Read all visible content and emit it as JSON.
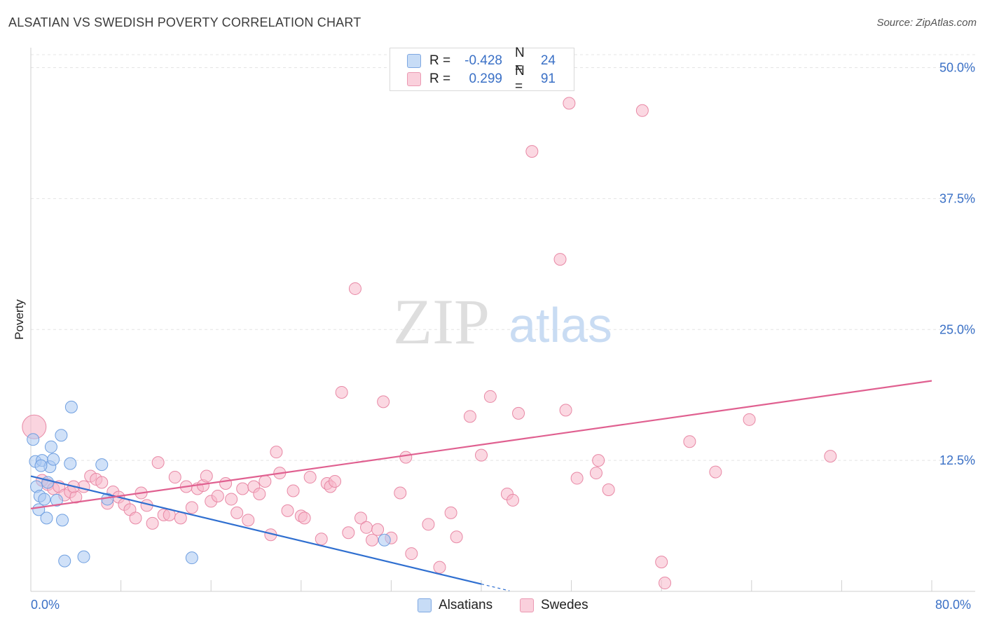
{
  "header": {
    "title": "ALSATIAN VS SWEDISH POVERTY CORRELATION CHART",
    "source": "Source: ZipAtlas.com"
  },
  "legend": {
    "rows": [
      {
        "r_label": "R =",
        "r_value": "-0.428",
        "n_label": "N =",
        "n_value": "24",
        "color": "#a9c9f2",
        "border": "#6f9fe0"
      },
      {
        "r_label": "R =",
        "r_value": "0.299",
        "n_label": "N =",
        "n_value": "91",
        "color": "#f7b8ca",
        "border": "#e888a5"
      }
    ]
  },
  "bottom_legend": {
    "alsatians": "Alsatians",
    "swedes": "Swedes"
  },
  "watermark": {
    "zip": "ZIP",
    "atlas": "atlas"
  },
  "chart_data": {
    "type": "scatter",
    "title": "ALSATIAN VS SWEDISH POVERTY CORRELATION CHART",
    "xlabel": "",
    "ylabel": "Poverty",
    "xlim": [
      0,
      80
    ],
    "ylim": [
      0,
      50
    ],
    "x_tick_labels": [
      "0.0%",
      "80.0%"
    ],
    "y_ticks": [
      12.5,
      25.0,
      37.5,
      50.0
    ],
    "y_tick_labels": [
      "12.5%",
      "25.0%",
      "37.5%",
      "50.0%"
    ],
    "grid": true,
    "legend_position": "top-center",
    "series": [
      {
        "name": "Alsatians",
        "color": "#6f9fe0",
        "fill": "#a9c9f2",
        "trend_color": "#2f6fd0",
        "trend": {
          "x0": 0,
          "y0": 11.0,
          "x1": 40,
          "y1": 0.7,
          "dash_to_x": 42.5
        },
        "points": [
          [
            0.2,
            14.5
          ],
          [
            0.4,
            12.4
          ],
          [
            0.5,
            10.0
          ],
          [
            0.7,
            7.8
          ],
          [
            0.8,
            9.1
          ],
          [
            1.0,
            12.5
          ],
          [
            1.2,
            8.8
          ],
          [
            1.4,
            7.0
          ],
          [
            1.5,
            10.4
          ],
          [
            1.7,
            11.9
          ],
          [
            1.8,
            13.8
          ],
          [
            2.0,
            12.6
          ],
          [
            2.3,
            8.7
          ],
          [
            2.7,
            14.9
          ],
          [
            2.8,
            6.8
          ],
          [
            3.0,
            2.9
          ],
          [
            3.5,
            12.2
          ],
          [
            3.6,
            17.6
          ],
          [
            4.7,
            3.3
          ],
          [
            6.3,
            12.1
          ],
          [
            6.8,
            8.8
          ],
          [
            14.3,
            3.2
          ],
          [
            31.4,
            4.9
          ],
          [
            0.9,
            12.0
          ]
        ]
      },
      {
        "name": "Swedes",
        "color": "#e888a5",
        "fill": "#f7b8ca",
        "trend_color": "#e06090",
        "trend": {
          "x0": 0,
          "y0": 7.9,
          "x1": 80,
          "y1": 20.1
        },
        "points": [
          [
            0.3,
            15.7
          ],
          [
            1.0,
            10.6
          ],
          [
            1.5,
            10.2
          ],
          [
            2.0,
            9.8
          ],
          [
            2.5,
            10.0
          ],
          [
            3.0,
            9.2
          ],
          [
            3.5,
            9.5
          ],
          [
            4.0,
            9.0
          ],
          [
            4.7,
            10.0
          ],
          [
            5.3,
            11.0
          ],
          [
            5.8,
            10.7
          ],
          [
            6.3,
            10.4
          ],
          [
            6.8,
            8.4
          ],
          [
            7.3,
            9.5
          ],
          [
            7.8,
            9.0
          ],
          [
            8.3,
            8.3
          ],
          [
            8.8,
            7.8
          ],
          [
            9.3,
            7.0
          ],
          [
            9.8,
            9.4
          ],
          [
            10.3,
            8.2
          ],
          [
            10.8,
            6.5
          ],
          [
            11.3,
            12.3
          ],
          [
            11.8,
            7.3
          ],
          [
            12.3,
            7.3
          ],
          [
            12.8,
            10.9
          ],
          [
            13.3,
            7.0
          ],
          [
            13.8,
            10.0
          ],
          [
            14.3,
            8.0
          ],
          [
            14.8,
            9.8
          ],
          [
            15.3,
            10.1
          ],
          [
            15.6,
            11.0
          ],
          [
            16.0,
            8.6
          ],
          [
            16.6,
            9.1
          ],
          [
            17.3,
            10.3
          ],
          [
            17.8,
            8.8
          ],
          [
            18.3,
            7.5
          ],
          [
            18.8,
            9.8
          ],
          [
            19.3,
            6.8
          ],
          [
            19.8,
            10.0
          ],
          [
            20.3,
            9.3
          ],
          [
            20.8,
            10.5
          ],
          [
            21.3,
            5.4
          ],
          [
            21.8,
            13.3
          ],
          [
            22.1,
            11.3
          ],
          [
            22.8,
            7.7
          ],
          [
            23.3,
            9.6
          ],
          [
            24.0,
            7.2
          ],
          [
            24.3,
            7.0
          ],
          [
            24.8,
            10.9
          ],
          [
            25.8,
            5.0
          ],
          [
            26.3,
            10.3
          ],
          [
            26.6,
            10.0
          ],
          [
            27.0,
            10.5
          ],
          [
            27.6,
            19.0
          ],
          [
            28.2,
            5.6
          ],
          [
            28.8,
            28.9
          ],
          [
            29.3,
            7.0
          ],
          [
            29.8,
            6.1
          ],
          [
            30.3,
            4.9
          ],
          [
            30.8,
            5.9
          ],
          [
            31.3,
            18.1
          ],
          [
            32.0,
            5.1
          ],
          [
            32.8,
            9.4
          ],
          [
            33.3,
            12.8
          ],
          [
            33.8,
            3.6
          ],
          [
            35.3,
            6.4
          ],
          [
            36.3,
            2.3
          ],
          [
            37.3,
            7.5
          ],
          [
            37.8,
            5.2
          ],
          [
            39.0,
            16.7
          ],
          [
            40.0,
            13.0
          ],
          [
            40.8,
            18.6
          ],
          [
            42.3,
            9.3
          ],
          [
            42.8,
            8.7
          ],
          [
            43.3,
            17.0
          ],
          [
            44.5,
            42.0
          ],
          [
            47.0,
            31.7
          ],
          [
            47.5,
            17.3
          ],
          [
            47.8,
            46.6
          ],
          [
            48.5,
            10.8
          ],
          [
            50.2,
            11.3
          ],
          [
            50.4,
            12.5
          ],
          [
            51.3,
            9.7
          ],
          [
            54.3,
            45.9
          ],
          [
            56.0,
            2.8
          ],
          [
            56.3,
            0.8
          ],
          [
            58.5,
            14.3
          ],
          [
            60.8,
            11.4
          ],
          [
            63.8,
            16.4
          ],
          [
            71.0,
            12.9
          ],
          [
            3.8,
            10.0
          ]
        ]
      }
    ]
  }
}
